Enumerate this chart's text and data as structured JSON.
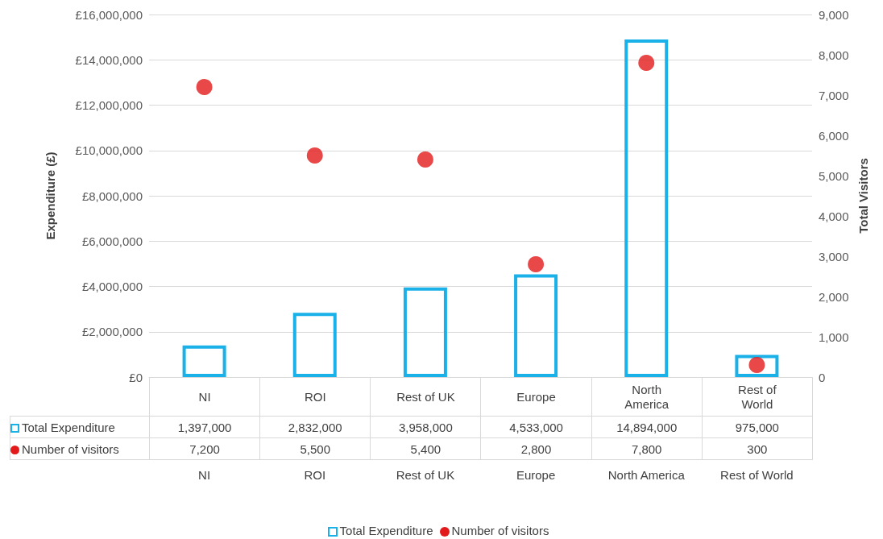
{
  "chart_data": {
    "type": "bar",
    "ylabel": "Expenditure (£)",
    "y2label": "Total Visitors",
    "categories": [
      "NI",
      "ROI",
      "Rest of UK",
      "Europe",
      "North America",
      "Rest of World"
    ],
    "series": [
      {
        "name": "Total Expenditure",
        "color": "#1ab0e8",
        "values": [
          1397000,
          2832000,
          3958000,
          4533000,
          14894000,
          975000
        ],
        "value_labels": [
          "1,397,000",
          "2,832,000",
          "3,958,000",
          "4,533,000",
          "14,894,000",
          "975,000"
        ]
      },
      {
        "name": "Number of visitors",
        "type": "scatter",
        "axis": "y2",
        "x": [
          "NI",
          "ROI",
          "Rest of UK",
          "Europe",
          "North America",
          "Rest of World"
        ],
        "color": "#e31a1c",
        "values": [
          7200,
          5500,
          5400,
          2800,
          7800,
          300
        ],
        "value_labels": [
          "7,200",
          "5,500",
          "5,400",
          "2,800",
          "7,800",
          "300"
        ]
      }
    ],
    "ylim": [
      0,
      16000000
    ],
    "yticks": [
      {
        "value": 0,
        "label": "£0"
      },
      {
        "value": 2000000,
        "label": "£2,000,000"
      },
      {
        "value": 4000000,
        "label": "£4,000,000"
      },
      {
        "value": 6000000,
        "label": "£6,000,000"
      },
      {
        "value": 8000000,
        "label": "£8,000,000"
      },
      {
        "value": 10000000,
        "label": "£10,000,000"
      },
      {
        "value": 12000000,
        "label": "£12,000,000"
      },
      {
        "value": 14000000,
        "label": "£14,000,000"
      },
      {
        "value": 16000000,
        "label": "£16,000,000"
      }
    ],
    "y2lim": [
      0,
      9000
    ],
    "y2ticks": [
      0,
      {
        "value": 1000,
        "label": "1,000"
      },
      {
        "value": 2000,
        "label": "2,000"
      },
      {
        "value": 3000,
        "label": "3,000"
      },
      {
        "value": 4000,
        "label": "4,000"
      },
      {
        "value": 5000,
        "label": "5,000"
      },
      {
        "value": 6000,
        "label": "6,000"
      },
      {
        "value": 7000,
        "label": "7,000"
      },
      {
        "value": 8000,
        "label": "8,000"
      },
      {
        "value": 9000,
        "label": "9,000"
      }
    ],
    "grid": "y",
    "legend": "bottom",
    "marker": "circle",
    "data_labels": true
  }
}
